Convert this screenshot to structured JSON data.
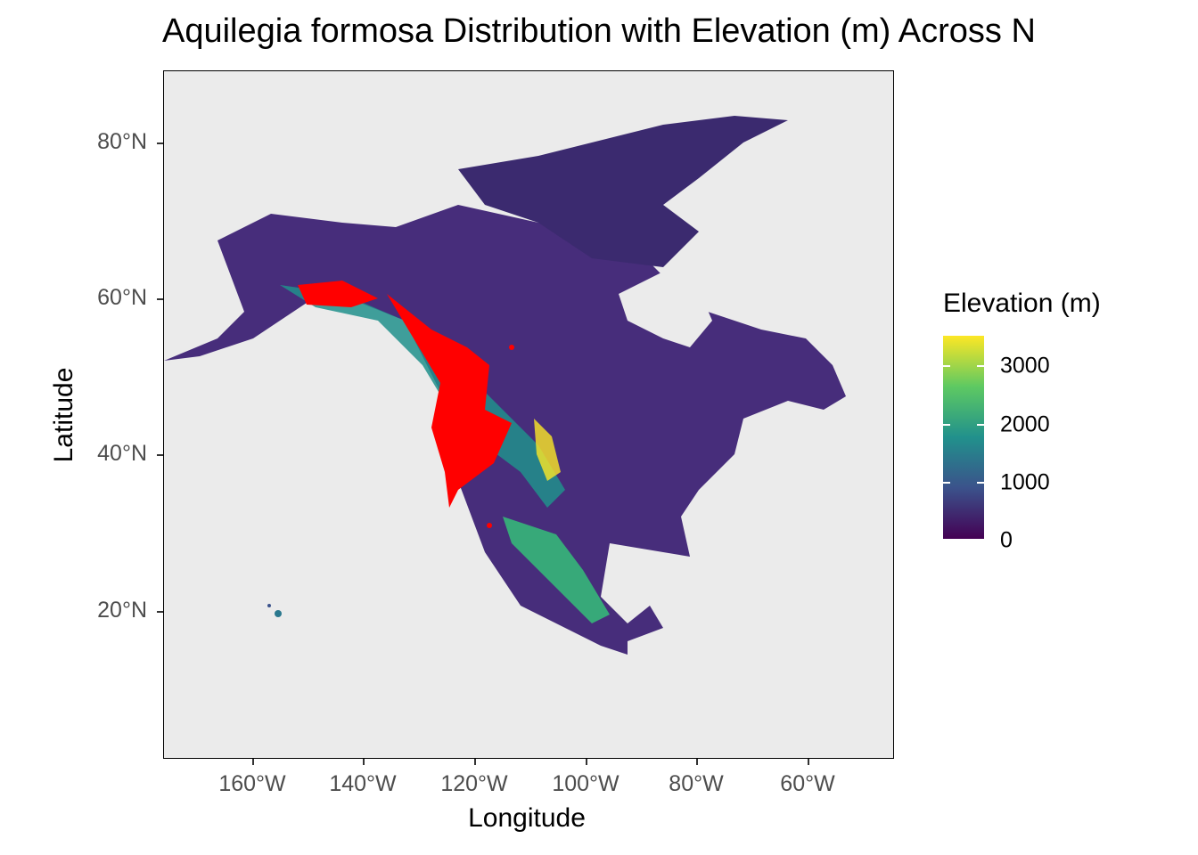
{
  "title": "Aquilegia formosa Distribution with Elevation (m) Across N",
  "axes": {
    "xlabel": "Longitude",
    "ylabel": "Latitude",
    "xticks": [
      "160°W",
      "140°W",
      "120°W",
      "100°W",
      "80°W",
      "60°W"
    ],
    "yticks": [
      "80°N",
      "60°N",
      "40°N",
      "20°N"
    ]
  },
  "legend": {
    "title": "Elevation (m)",
    "labels": [
      "3000",
      "2000",
      "1000",
      "0"
    ],
    "palette": "viridis",
    "colors": [
      "#440154",
      "#3b528b",
      "#21918c",
      "#5ec962",
      "#fde725"
    ]
  },
  "map": {
    "panel_background": "#ebebeb",
    "occurrence_color": "#ff0000",
    "extent": {
      "lon_min": -178,
      "lon_max": -47,
      "lat_min": 1,
      "lat_max": 89
    }
  },
  "chart_data": {
    "type": "map",
    "layers": [
      "elevation raster",
      "occurrence points"
    ],
    "legend_range": [
      0,
      3500
    ]
  }
}
